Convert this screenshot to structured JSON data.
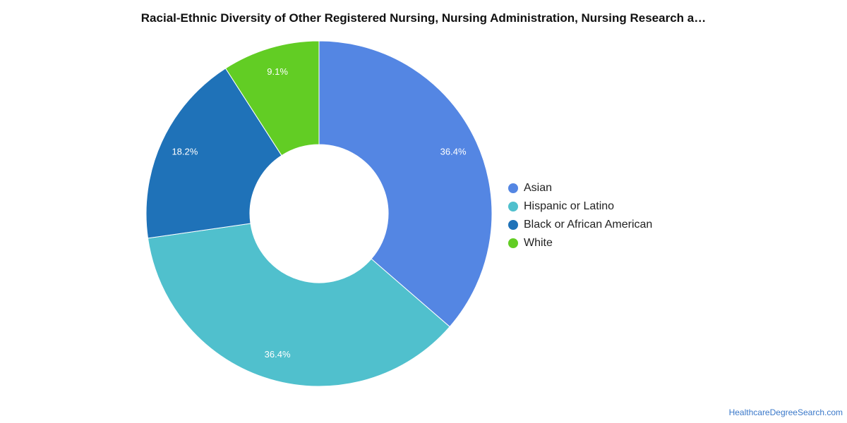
{
  "chart_data": {
    "type": "pie",
    "title": "Racial-Ethnic Diversity of Other Registered Nursing, Nursing Administration, Nursing Research a…",
    "categories": [
      "Asian",
      "Hispanic or Latino",
      "Black or African American",
      "White"
    ],
    "values": [
      36.4,
      36.4,
      18.2,
      9.1
    ],
    "data_labels": [
      "36.4%",
      "36.4%",
      "18.2%",
      "9.1%"
    ],
    "colors": [
      "#5486e3",
      "#50c0cd",
      "#1f72b8",
      "#62cd24"
    ],
    "donut": true,
    "legend_position": "right"
  },
  "credit": {
    "text": "HealthcareDegreeSearch.com"
  }
}
